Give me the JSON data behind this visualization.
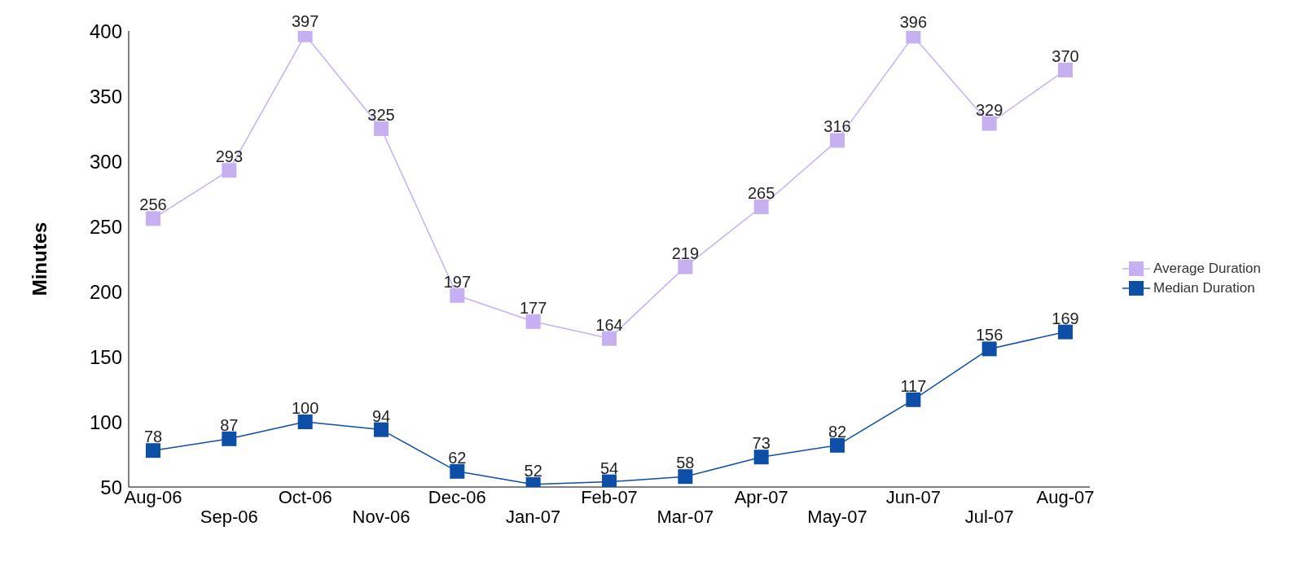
{
  "chart_data": {
    "type": "line",
    "ylabel": "Minutes",
    "categories": [
      "Aug-06",
      "Sep-06",
      "Oct-06",
      "Nov-06",
      "Dec-06",
      "Jan-07",
      "Feb-07",
      "Mar-07",
      "Apr-07",
      "May-07",
      "Jun-07",
      "Jul-07",
      "Aug-07"
    ],
    "series": [
      {
        "name": "Average Duration",
        "color": "#c6b0f2",
        "values": [
          256,
          293,
          397,
          325,
          197,
          177,
          164,
          219,
          265,
          316,
          396,
          329,
          370
        ]
      },
      {
        "name": "Median Duration",
        "color": "#0d4ea6",
        "values": [
          78,
          87,
          100,
          94,
          62,
          52,
          54,
          58,
          73,
          82,
          117,
          156,
          169
        ]
      }
    ],
    "ylim": [
      50,
      400
    ],
    "yticks": [
      50,
      100,
      150,
      200,
      250,
      300,
      350,
      400
    ],
    "grid": false,
    "legend": "right",
    "marker": "square",
    "line_style": "solid",
    "data_labels": true
  }
}
